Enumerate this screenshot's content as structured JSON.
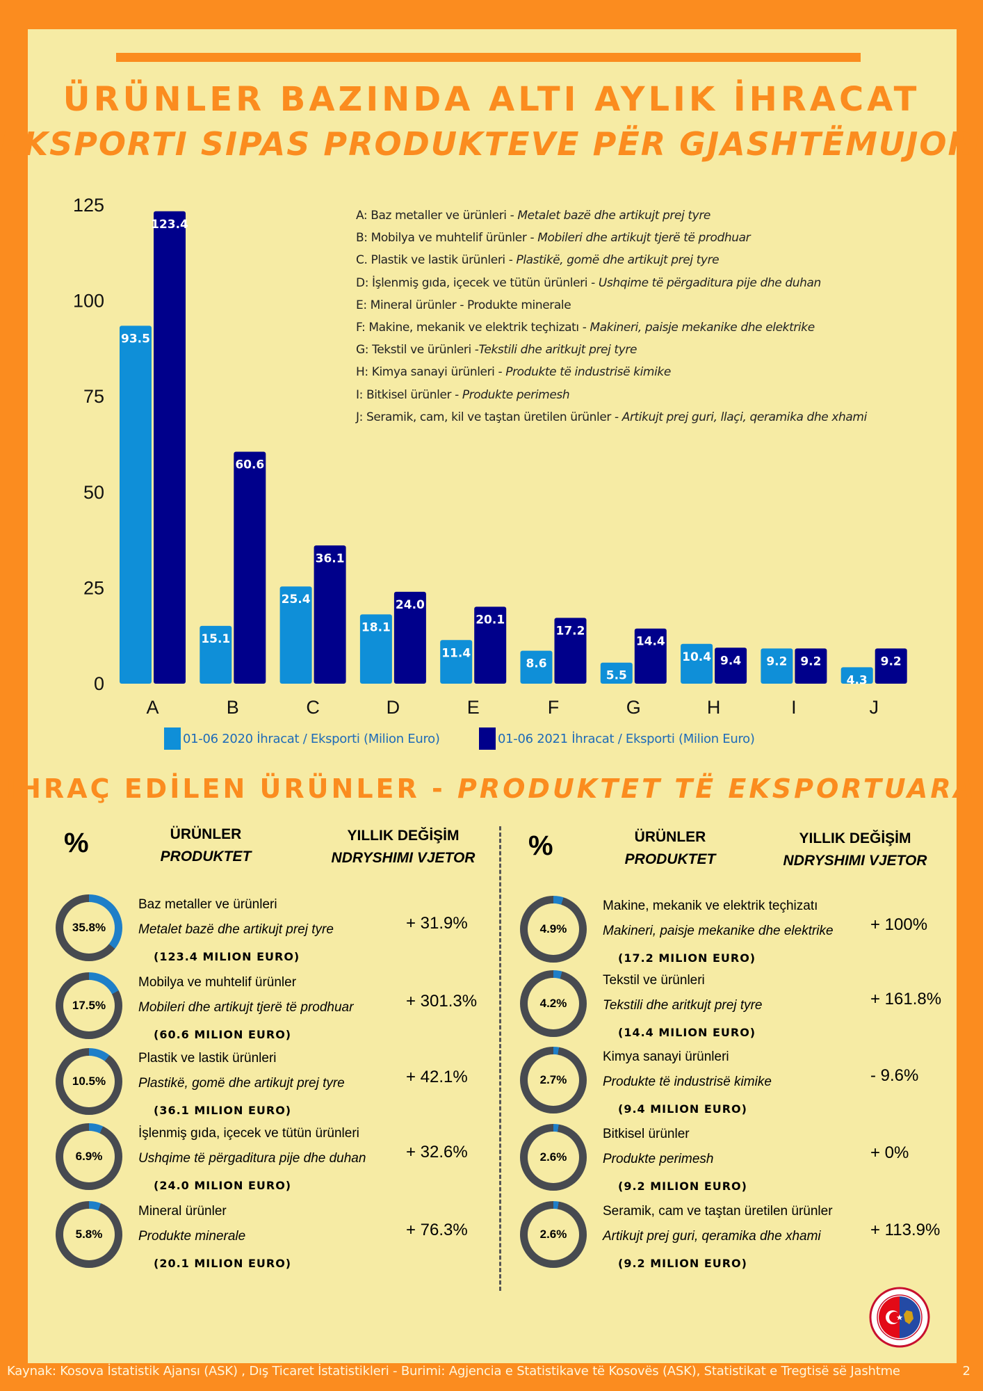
{
  "title_tr": "ÜRÜNLER BAZINDA ALTI AYLIK İHRACAT",
  "title_sq": "EKSPORTI SIPAS PRODUKTEVE PËR GJASHTËMUJORË",
  "chart_data": {
    "type": "bar",
    "categories": [
      "A",
      "B",
      "C",
      "D",
      "E",
      "F",
      "G",
      "H",
      "I",
      "J"
    ],
    "series": [
      {
        "name": "01-06 2020 İhracat / Eksporti (Milion Euro)",
        "color": "#0f8fd8",
        "values": [
          93.5,
          15.1,
          25.4,
          18.1,
          11.4,
          8.6,
          5.5,
          10.4,
          9.2,
          4.3
        ],
        "labels": [
          "93.5",
          "15.1",
          "25.4",
          "18.1",
          "11.4",
          "8.6",
          "5.5",
          "10.4",
          "9.2",
          "4.3"
        ]
      },
      {
        "name": "01-06 2021 İhracat / Eksporti (Milion Euro)",
        "color": "#00008b",
        "values": [
          123.4,
          60.6,
          36.1,
          24.0,
          20.1,
          17.2,
          14.4,
          9.4,
          9.2,
          9.2
        ],
        "labels": [
          "123.4",
          "60.6",
          "36.1",
          "24.0",
          "20.1",
          "17.2",
          "14.4",
          "9.4",
          "9.2",
          "9.2"
        ]
      }
    ],
    "yticks": [
      "0",
      "25",
      "50",
      "75",
      "100",
      "125"
    ],
    "ylim": [
      0,
      125
    ],
    "grid": false,
    "legend": "bottom",
    "category_legend": [
      {
        "tr": "A: Baz metaller ve ürünleri - ",
        "sq": "Metalet bazë dhe artikujt prej tyre"
      },
      {
        "tr": "B: Mobilya ve muhtelif ürünler -  ",
        "sq": "Mobileri dhe artikujt tjerë të prodhuar"
      },
      {
        "tr": "C. Plastik ve lastik ürünleri - ",
        "sq": "Plastikë, gomë dhe artikujt prej tyre"
      },
      {
        "tr": "D: İşlenmiş gıda, içecek ve tütün ürünleri - ",
        "sq": "Ushqime të përgaditura  pije dhe duhan"
      },
      {
        "tr": "E: Mineral ürünler - Produkte minerale",
        "sq": ""
      },
      {
        "tr": "F: Makine, mekanik ve elektrik teçhizatı - ",
        "sq": "Makineri, paisje mekanike dhe elektrike"
      },
      {
        "tr": "G: Tekstil ve ürünleri -",
        "sq": "Tekstili dhe aritkujt prej tyre"
      },
      {
        "tr": "H: Kimya sanayi ürünleri - ",
        "sq": "Produkte të industrisë kimike"
      },
      {
        "tr": "I: Bitkisel ürünler -  ",
        "sq": "Produkte perimesh"
      },
      {
        "tr": "J: Seramik, cam, kil ve taştan üretilen ürünler - ",
        "sq": "Artikujt prej guri, llaçi, qeramika dhe xhami"
      }
    ]
  },
  "section2": {
    "title_tr": "İHRAÇ EDİLEN ÜRÜNLER - ",
    "title_sq": "PRODUKTET TË EKSPORTUARA"
  },
  "headers": {
    "pct": "%",
    "products_tr": "ÜRÜNLER",
    "products_sq": "PRODUKTET",
    "change_tr": "YILLIK DEĞİŞİM",
    "change_sq": "NDRYSHIMI VJETOR"
  },
  "products_left": [
    {
      "share": 35.8,
      "pct": "35.8%",
      "tr": "Baz metaller ve ürünleri",
      "sq": "Metalet bazë dhe artikujt prej tyre",
      "amount": "(123.4 MILION EURO)",
      "change": "+ 31.9%"
    },
    {
      "share": 17.5,
      "pct": "17.5%",
      "tr": "Mobilya ve muhtelif ürünler",
      "sq": "Mobileri dhe artikujt tjerë të prodhuar",
      "amount": "(60.6 MILION EURO)",
      "change": "+ 301.3%"
    },
    {
      "share": 10.5,
      "pct": "10.5%",
      "tr": "Plastik ve lastik ürünleri",
      "sq": "Plastikë, gomë dhe artikujt prej tyre",
      "amount": "(36.1 MILION EURO)",
      "change": "+ 42.1%"
    },
    {
      "share": 6.9,
      "pct": "6.9%",
      "tr": "İşlenmiş gıda, içecek ve tütün ürünleri",
      "sq": "Ushqime të përgaditura pije dhe duhan",
      "amount": "(24.0 MILION EURO)",
      "change": "+ 32.6%"
    },
    {
      "share": 5.8,
      "pct": "5.8%",
      "tr": "Mineral ürünler",
      "sq": "Produkte minerale",
      "amount": "(20.1 MILION EURO)",
      "change": "+ 76.3%"
    }
  ],
  "products_right": [
    {
      "share": 4.9,
      "pct": "4.9%",
      "tr": "Makine, mekanik ve elektrik teçhizatı",
      "sq": "Makineri, paisje mekanike dhe elektrike",
      "amount": "(17.2 MILION EURO)",
      "change": "+ 100%"
    },
    {
      "share": 4.2,
      "pct": "4.2%",
      "tr": "Tekstil ve ürünleri",
      "sq": "Tekstili dhe aritkujt prej tyre",
      "amount": "(14.4 MILION EURO)",
      "change": "+ 161.8%"
    },
    {
      "share": 2.7,
      "pct": "2.7%",
      "tr": "Kimya sanayi ürünleri",
      "sq": "Produkte të industrisë kimike",
      "amount": "(9.4 MILION EURO)",
      "change": "- 9.6%"
    },
    {
      "share": 2.6,
      "pct": "2.6%",
      "tr": "Bitkisel ürünler",
      "sq": "Produkte perimesh",
      "amount": "(9.2 MILION EURO)",
      "change": "+ 0%"
    },
    {
      "share": 2.6,
      "pct": "2.6%",
      "tr": "Seramik, cam ve taştan üretilen ürünler",
      "sq": "Artikujt prej guri, qeramika dhe xhami",
      "amount": "(9.2 MILION EURO)",
      "change": "+ 113.9%"
    }
  ],
  "colors": {
    "accent": "#fb8c1f",
    "panel": "#f6eba4",
    "donut_fill": "#1e7fc8",
    "donut_ring": "#474a50"
  },
  "footer": "Kaynak: Kosova İstatistik Ajansı (ASK) ,  Dış Ticaret İstatistikleri -   Burimi: Agjencia e Statistikave të Kosovës (ASK), Statistikat e Tregtisë së Jashtme",
  "page_number": "2"
}
